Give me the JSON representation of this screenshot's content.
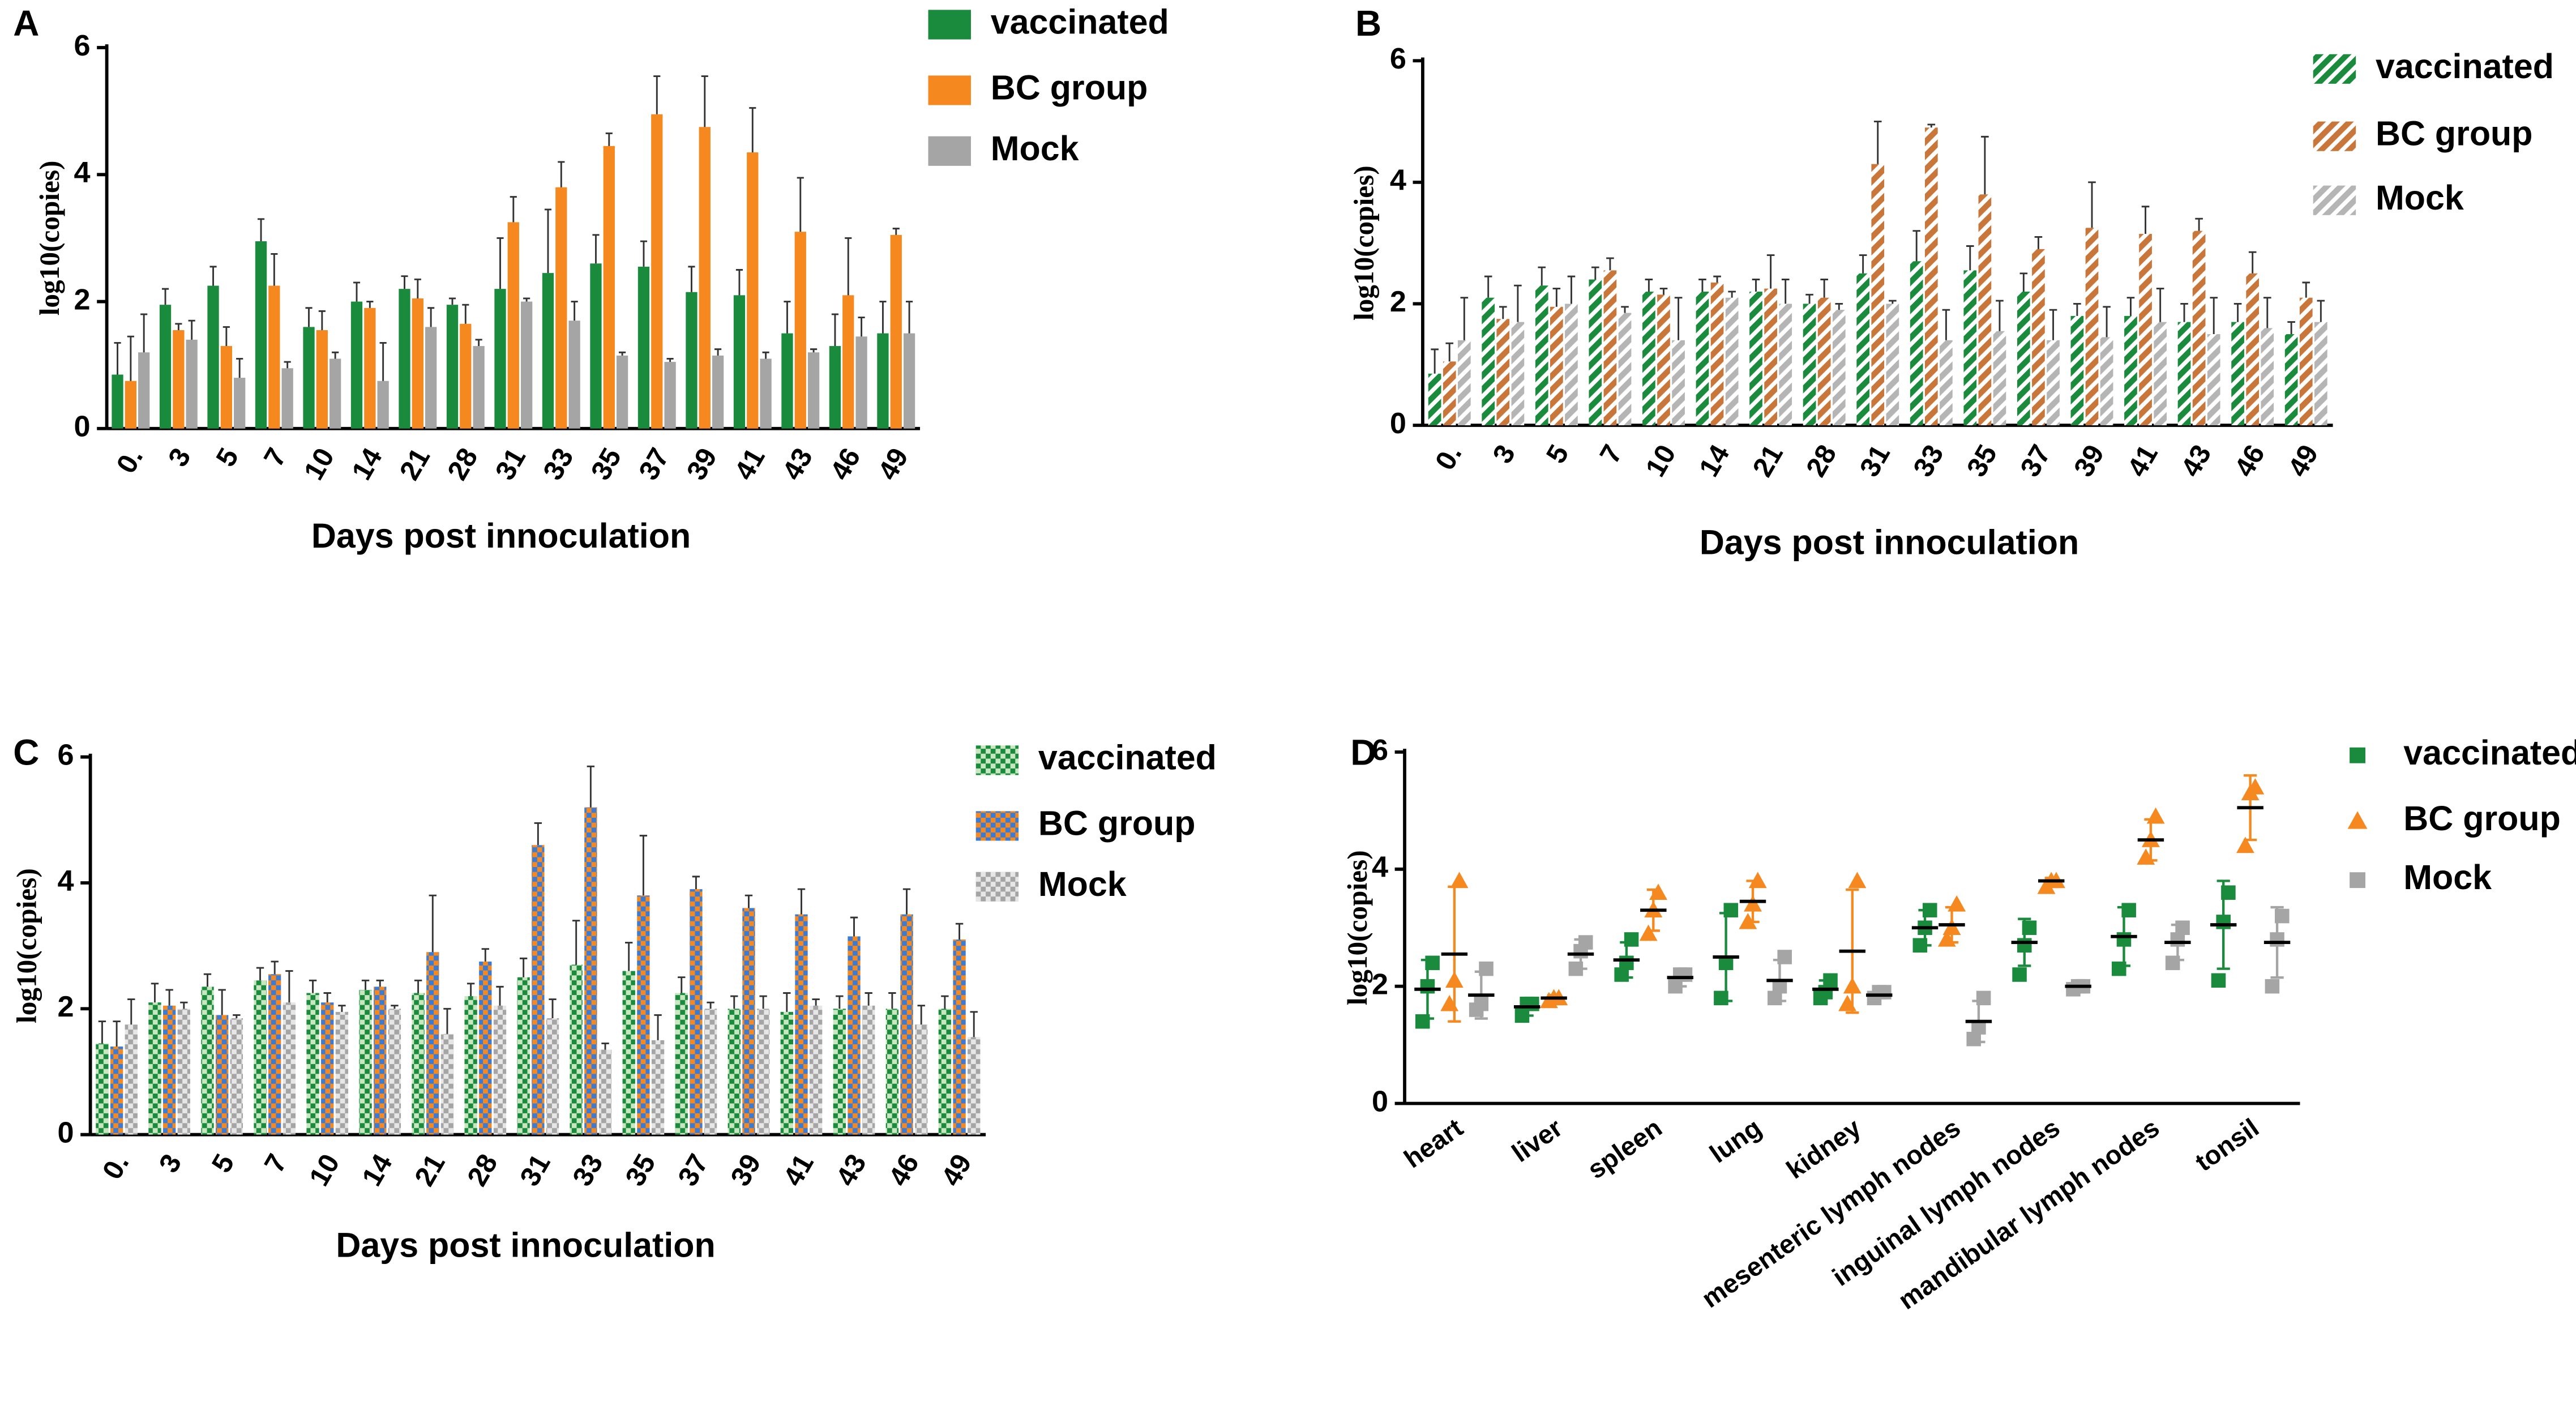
{
  "chart_data": [
    {
      "type": "bar",
      "label": "A",
      "pattern": "solid",
      "xlabel": "Days post innoculation",
      "ylabel": "log10(copies)",
      "categories": [
        "0.",
        "3",
        "5",
        "7",
        "10",
        "14",
        "21",
        "28",
        "31",
        "33",
        "35",
        "37",
        "39",
        "41",
        "43",
        "46",
        "49"
      ],
      "ylim": [
        0,
        6
      ],
      "yticks": [
        0,
        2,
        4,
        6
      ],
      "series": [
        {
          "name": "vaccinated",
          "color": "#1a8a3c",
          "values": [
            0.85,
            1.95,
            2.25,
            2.95,
            1.6,
            2.0,
            2.2,
            1.95,
            2.2,
            2.45,
            2.6,
            2.55,
            2.15,
            2.1,
            1.5,
            1.3,
            1.5
          ],
          "errors": [
            0.5,
            0.25,
            0.3,
            0.35,
            0.3,
            0.3,
            0.2,
            0.1,
            0.8,
            1.0,
            0.45,
            0.4,
            0.4,
            0.4,
            0.5,
            0.5,
            0.5
          ]
        },
        {
          "name": "BC group",
          "color": "#f5891f",
          "values": [
            0.75,
            1.55,
            1.3,
            2.25,
            1.55,
            1.9,
            2.05,
            1.65,
            3.25,
            3.8,
            4.45,
            4.95,
            4.75,
            4.35,
            3.1,
            2.1,
            3.05
          ],
          "errors": [
            0.7,
            0.1,
            0.3,
            0.5,
            0.3,
            0.1,
            0.3,
            0.3,
            0.4,
            0.4,
            0.2,
            0.6,
            0.8,
            0.7,
            0.85,
            0.9,
            0.1
          ]
        },
        {
          "name": "Mock",
          "color": "#a5a5a5",
          "values": [
            1.2,
            1.4,
            0.8,
            0.95,
            1.1,
            0.75,
            1.6,
            1.3,
            2.0,
            1.7,
            1.15,
            1.05,
            1.15,
            1.1,
            1.2,
            1.45,
            1.5
          ],
          "errors": [
            0.6,
            0.3,
            0.3,
            0.1,
            0.1,
            0.6,
            0.3,
            0.1,
            0.05,
            0.3,
            0.05,
            0.05,
            0.1,
            0.1,
            0.05,
            0.3,
            0.5
          ]
        }
      ]
    },
    {
      "type": "bar",
      "label": "B",
      "pattern": "hatch",
      "xlabel": "Days post innoculation",
      "ylabel": "log10(copies)",
      "categories": [
        "0.",
        "3",
        "5",
        "7",
        "10",
        "14",
        "21",
        "28",
        "31",
        "33",
        "35",
        "37",
        "39",
        "41",
        "43",
        "46",
        "49"
      ],
      "ylim": [
        0,
        6
      ],
      "yticks": [
        0,
        2,
        4,
        6
      ],
      "series": [
        {
          "name": "vaccinated",
          "color": "#1a8a3c",
          "values": [
            0.85,
            2.1,
            2.3,
            2.4,
            2.2,
            2.2,
            2.2,
            2.0,
            2.5,
            2.7,
            2.55,
            2.2,
            1.8,
            1.8,
            1.7,
            1.7,
            1.5
          ],
          "errors": [
            0.4,
            0.35,
            0.3,
            0.2,
            0.2,
            0.2,
            0.2,
            0.15,
            0.3,
            0.5,
            0.4,
            0.3,
            0.2,
            0.3,
            0.3,
            0.3,
            0.2
          ]
        },
        {
          "name": "BC group",
          "color": "#c8763a",
          "values": [
            1.05,
            1.75,
            1.95,
            2.55,
            2.15,
            2.35,
            2.25,
            2.1,
            4.3,
            4.9,
            3.8,
            2.9,
            3.25,
            3.15,
            3.2,
            2.5,
            2.1
          ],
          "errors": [
            0.3,
            0.2,
            0.3,
            0.2,
            0.1,
            0.1,
            0.55,
            0.3,
            0.7,
            0.05,
            0.95,
            0.2,
            0.75,
            0.45,
            0.2,
            0.35,
            0.25
          ]
        },
        {
          "name": "Mock",
          "color": "#b5b5b5",
          "values": [
            1.4,
            1.7,
            2.0,
            1.85,
            1.4,
            2.1,
            2.0,
            1.9,
            2.0,
            1.4,
            1.55,
            1.4,
            1.45,
            1.7,
            1.5,
            1.6,
            1.7
          ],
          "errors": [
            0.7,
            0.6,
            0.45,
            0.1,
            0.7,
            0.1,
            0.4,
            0.1,
            0.05,
            0.5,
            0.5,
            0.5,
            0.5,
            0.55,
            0.6,
            0.5,
            0.35
          ]
        }
      ]
    },
    {
      "type": "bar",
      "label": "C",
      "pattern": "check",
      "xlabel": "Days post innoculation",
      "ylabel": "log10(copies)",
      "categories": [
        "0.",
        "3",
        "5",
        "7",
        "10",
        "14",
        "21",
        "28",
        "31",
        "33",
        "35",
        "37",
        "39",
        "41",
        "43",
        "46",
        "49"
      ],
      "ylim": [
        0,
        6
      ],
      "yticks": [
        0,
        2,
        4,
        6
      ],
      "series": [
        {
          "name": "vaccinated",
          "color": "#1a8a3c",
          "color2": "#c8e6c0",
          "values": [
            1.45,
            2.1,
            2.35,
            2.45,
            2.25,
            2.3,
            2.25,
            2.2,
            2.5,
            2.7,
            2.6,
            2.25,
            2.0,
            1.95,
            2.0,
            2.0,
            2.0
          ],
          "errors": [
            0.35,
            0.3,
            0.2,
            0.2,
            0.2,
            0.15,
            0.2,
            0.2,
            0.3,
            0.7,
            0.45,
            0.25,
            0.2,
            0.3,
            0.2,
            0.25,
            0.2
          ]
        },
        {
          "name": "BC group",
          "color": "#f5891f",
          "color2": "#3a7bd5",
          "values": [
            1.4,
            2.05,
            1.9,
            2.55,
            2.1,
            2.35,
            2.9,
            2.75,
            4.6,
            5.2,
            3.8,
            3.9,
            3.6,
            3.5,
            3.15,
            3.5,
            3.1
          ],
          "errors": [
            0.4,
            0.25,
            0.4,
            0.2,
            0.15,
            0.1,
            0.9,
            0.2,
            0.35,
            0.65,
            0.95,
            0.2,
            0.2,
            0.4,
            0.3,
            0.4,
            0.25
          ]
        },
        {
          "name": "Mock",
          "color": "#a5a5a5",
          "color2": "#e6e6e6",
          "values": [
            1.75,
            2.0,
            1.85,
            2.1,
            1.95,
            2.0,
            1.6,
            2.05,
            1.85,
            1.35,
            1.5,
            2.0,
            2.0,
            2.05,
            2.05,
            1.75,
            1.55
          ],
          "errors": [
            0.4,
            0.1,
            0.05,
            0.5,
            0.1,
            0.05,
            0.4,
            0.3,
            0.3,
            0.1,
            0.4,
            0.1,
            0.2,
            0.1,
            0.2,
            0.3,
            0.4
          ]
        }
      ]
    },
    {
      "type": "dot",
      "label": "D",
      "ylabel": "log10(copies)",
      "categories": [
        "heart",
        "liver",
        "spleen",
        "lung",
        "kidney",
        "mesenteric lymph nodes",
        "inguinal lymph nodes",
        "mandibular lymph nodes",
        "tonsil"
      ],
      "ylim": [
        0,
        6
      ],
      "yticks": [
        0,
        2,
        4,
        6
      ],
      "series": [
        {
          "name": "vaccinated",
          "color": "#1a8a3c",
          "marker": "square",
          "values": [
            1.95,
            1.65,
            2.45,
            2.5,
            1.95,
            3.0,
            2.75,
            2.85,
            3.05
          ],
          "errors": [
            0.5,
            0.15,
            0.3,
            0.75,
            0.15,
            0.3,
            0.4,
            0.5,
            0.75
          ],
          "points": [
            [
              1.4,
              2.0,
              2.4
            ],
            [
              1.5,
              1.7,
              1.7
            ],
            [
              2.2,
              2.4,
              2.8
            ],
            [
              1.8,
              2.4,
              3.3
            ],
            [
              1.8,
              1.9,
              2.1
            ],
            [
              2.7,
              3.0,
              3.3
            ],
            [
              2.2,
              2.7,
              3.0
            ],
            [
              2.3,
              2.8,
              3.3
            ],
            [
              2.1,
              3.1,
              3.6
            ]
          ]
        },
        {
          "name": "BC group",
          "color": "#f5891f",
          "marker": "triangle",
          "values": [
            2.55,
            1.8,
            3.3,
            3.45,
            2.6,
            3.05,
            3.8,
            4.5,
            5.05
          ],
          "errors": [
            1.15,
            0.05,
            0.35,
            0.35,
            1.05,
            0.3,
            0.05,
            0.35,
            0.55
          ],
          "points": [
            [
              1.7,
              2.1,
              3.8
            ],
            [
              1.75,
              1.8,
              1.8
            ],
            [
              2.9,
              3.3,
              3.6
            ],
            [
              3.1,
              3.4,
              3.8
            ],
            [
              1.7,
              2.0,
              3.8
            ],
            [
              2.8,
              3.0,
              3.4
            ],
            [
              3.7,
              3.8,
              3.8
            ],
            [
              4.2,
              4.5,
              4.9
            ],
            [
              4.4,
              5.3,
              5.4
            ]
          ]
        },
        {
          "name": "Mock",
          "color": "#a5a5a5",
          "marker": "square",
          "values": [
            1.85,
            2.55,
            2.15,
            2.1,
            1.85,
            1.4,
            2.0,
            2.75,
            2.75
          ],
          "errors": [
            0.4,
            0.25,
            0.15,
            0.35,
            0.05,
            0.35,
            0.05,
            0.3,
            0.6
          ],
          "points": [
            [
              1.6,
              1.7,
              2.3
            ],
            [
              2.3,
              2.6,
              2.75
            ],
            [
              2.0,
              2.2,
              2.2
            ],
            [
              1.8,
              2.0,
              2.5
            ],
            [
              1.8,
              1.9,
              1.9
            ],
            [
              1.1,
              1.3,
              1.8
            ],
            [
              1.95,
              2.0,
              2.0
            ],
            [
              2.4,
              2.8,
              3.0
            ],
            [
              2.0,
              2.8,
              3.2
            ]
          ]
        }
      ]
    }
  ]
}
